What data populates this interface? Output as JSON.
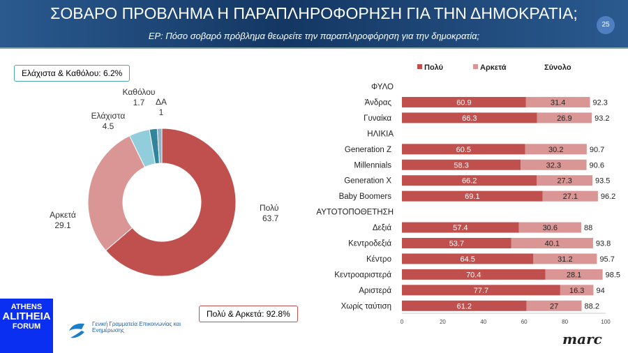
{
  "header": {
    "title": "ΣΟΒΑΡΟ ΠΡΟΒΛΗΜΑ Η ΠΑΡΑΠΛΗΡΟΦΟΡΗΣΗ ΓΙΑ ΤΗΝ ΔΗΜΟΚΡΑΤΙΑ;",
    "subtitle": "ΕΡ: Πόσο σοβαρό πρόβλημα θεωρείτε την παραπληροφόρηση για την δημοκρατία;",
    "page": "25"
  },
  "boxes": {
    "low": "Ελάχιστα & Καθόλου: 6.2%",
    "high": "Πολύ & Αρκετά: 92.8%"
  },
  "footer": {
    "forum": "ATHENS ALITHEIA FORUM",
    "gg": "Γενική Γραμματεία Επικοινωνίας και Ενημέρωσης",
    "brand": "marc"
  },
  "chart_data": [
    {
      "type": "pie",
      "donut": true,
      "slices": [
        {
          "label": "Πολύ",
          "value": 63.7,
          "color": "#c0504d"
        },
        {
          "label": "Αρκετά",
          "value": 29.1,
          "color": "#d99694"
        },
        {
          "label": "Ελάχιστα",
          "value": 4.5,
          "color": "#92cddc"
        },
        {
          "label": "Καθόλου",
          "value": 1.7,
          "color": "#31849b"
        },
        {
          "label": "ΔΑ",
          "value": 1,
          "color": "#8db3c7"
        }
      ]
    },
    {
      "type": "bar",
      "stacked": true,
      "orientation": "horizontal",
      "legend": [
        "Πολύ",
        "Αρκετά",
        "Σύνολο"
      ],
      "colors": {
        "Πολύ": "#c0504d",
        "Αρκετά": "#d99694"
      },
      "xlim": [
        0,
        100
      ],
      "xticks": [
        0,
        20,
        40,
        60,
        80,
        100
      ],
      "rows": [
        {
          "header": "ΦΥΛΟ"
        },
        {
          "label": "Άνδρας",
          "poly": 60.9,
          "arketa": 31.4,
          "total": 92.3
        },
        {
          "label": "Γυναίκα",
          "poly": 66.3,
          "arketa": 26.9,
          "total": 93.2
        },
        {
          "header": "ΗΛΙΚΙΑ"
        },
        {
          "label": "Generation Z",
          "poly": 60.5,
          "arketa": 30.2,
          "total": 90.7
        },
        {
          "label": "Millennials",
          "poly": 58.3,
          "arketa": 32.3,
          "total": 90.6
        },
        {
          "label": "Generation X",
          "poly": 66.2,
          "arketa": 27.3,
          "total": 93.5
        },
        {
          "label": "Baby Boomers",
          "poly": 69.1,
          "arketa": 27.1,
          "total": 96.2
        },
        {
          "header": "ΑΥΤΟΤΟΠΟΘΕΤΗΣΗ"
        },
        {
          "label": "Δεξιά",
          "poly": 57.4,
          "arketa": 30.6,
          "total": 88
        },
        {
          "label": "Κεντροδεξιά",
          "poly": 53.7,
          "arketa": 40.1,
          "total": 93.8
        },
        {
          "label": "Κέντρο",
          "poly": 64.5,
          "arketa": 31.2,
          "total": 95.7
        },
        {
          "label": "Κεντροαριστερά",
          "poly": 70.4,
          "arketa": 28.1,
          "total": 98.5
        },
        {
          "label": "Αριστερά",
          "poly": 77.7,
          "arketa": 16.3,
          "total": 94
        },
        {
          "label": "Χωρίς ταύτιση",
          "poly": 61.2,
          "arketa": 27,
          "total": 88.2
        }
      ]
    }
  ]
}
